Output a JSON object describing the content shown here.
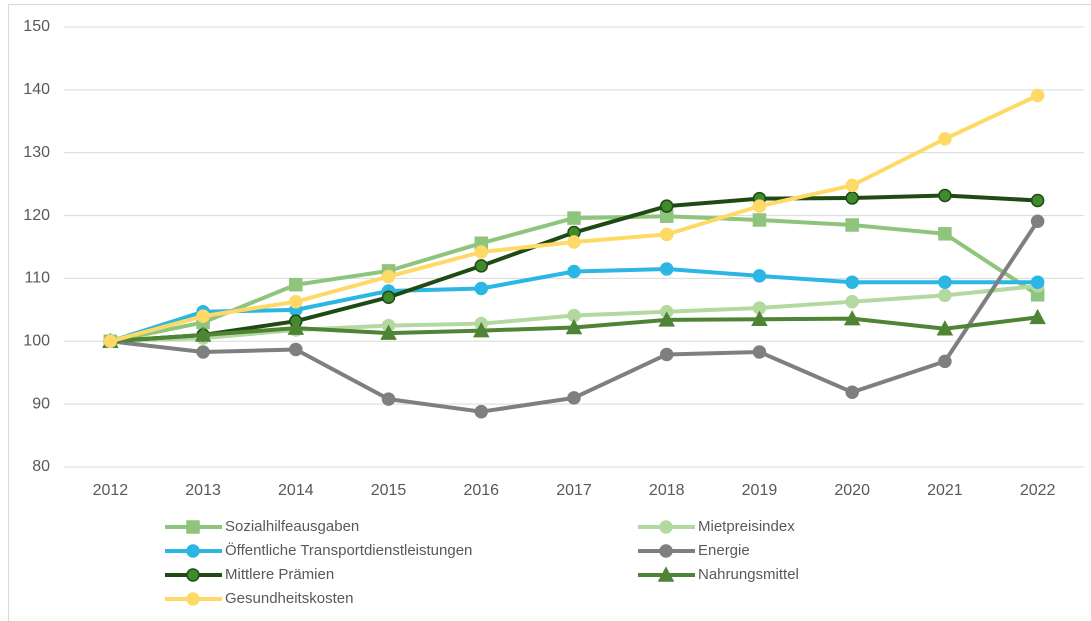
{
  "chart_data": {
    "type": "line",
    "categories": [
      "2012",
      "2013",
      "2014",
      "2015",
      "2016",
      "2017",
      "2018",
      "2019",
      "2020",
      "2021",
      "2022"
    ],
    "ylim": [
      80,
      150
    ],
    "yticks": [
      80,
      90,
      100,
      110,
      120,
      130,
      140,
      150
    ],
    "grid": true,
    "legend": "bottom",
    "series": [
      {
        "name": "Sozialhilfeausgaben",
        "color": "#8fc47c",
        "marker": "square",
        "marker_fill": "#8fc47c",
        "values": [
          100,
          103,
          109,
          111.2,
          115.6,
          119.6,
          119.9,
          119.3,
          118.5,
          117.1,
          107.4
        ]
      },
      {
        "name": "Mietpreisindex",
        "color": "#b4d9a0",
        "marker": "circle",
        "marker_fill": "#b4d9a0",
        "values": [
          100,
          100.5,
          101.8,
          102.5,
          102.8,
          104.1,
          104.7,
          105.3,
          106.3,
          107.3,
          108.8
        ]
      },
      {
        "name": "Öffentliche Transportdienstleistungen",
        "color": "#2bb6e3",
        "marker": "circle",
        "marker_fill": "#2bb6e3",
        "values": [
          100,
          104.7,
          105.0,
          108.0,
          108.4,
          111.1,
          111.5,
          110.4,
          109.4,
          109.4,
          109.4
        ]
      },
      {
        "name": "Energie",
        "color": "#7f7f7f",
        "marker": "circle",
        "marker_fill": "#7f7f7f",
        "values": [
          100,
          98.3,
          98.7,
          90.8,
          88.8,
          91.0,
          97.9,
          98.3,
          91.9,
          96.8,
          119.1
        ]
      },
      {
        "name": "Mittlere Prämien",
        "color": "#1f4a14",
        "marker": "circle",
        "marker_fill": "#3f8a2c",
        "values": [
          100,
          101,
          103.2,
          107,
          112,
          117.3,
          121.5,
          122.7,
          122.8,
          123.2,
          122.4
        ]
      },
      {
        "name": "Nahrungsmittel",
        "color": "#4f8436",
        "marker": "triangle",
        "marker_fill": "#4f8436",
        "values": [
          100,
          101,
          102.1,
          101.3,
          101.7,
          102.2,
          103.4,
          103.5,
          103.6,
          102.0,
          103.8
        ]
      },
      {
        "name": "Gesundheitskosten",
        "color": "#ffd966",
        "marker": "circle",
        "marker_fill": "#ffd966",
        "values": [
          100,
          104,
          106.3,
          110.3,
          114.2,
          115.8,
          117.0,
          121.5,
          124.8,
          132.2,
          139.1
        ]
      }
    ]
  }
}
